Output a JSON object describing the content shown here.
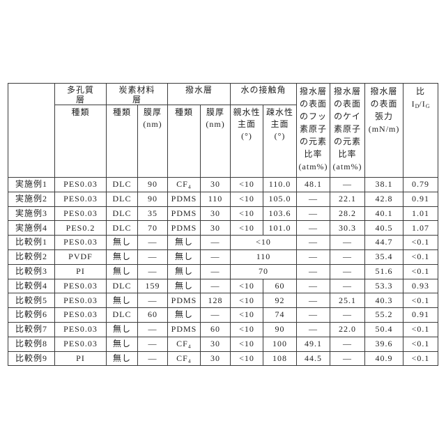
{
  "header": {
    "groups": {
      "porous": "多孔質\n層",
      "carbon": "炭素材料\n層",
      "repellent": "撥水層",
      "contact": "水の接触角"
    },
    "sub": {
      "porous_type": "種類",
      "carbon_type": "種類",
      "carbon_thickness": "膜厚\n(nm)",
      "repellent_type": "種類",
      "repellent_thickness": "膜厚\n(nm)",
      "hydrophilic": "親水性\n主面\n(°)",
      "hydrophobic": "疎水性\n主面\n(°)"
    },
    "fluorine": "撥水層\nの表面\nのフッ\n素原子\nの元素\n比率\n(atm%)",
    "silicon": "撥水層\nの表面\nのケイ\n素原子\nの元素\n比率\n(atm%)",
    "tension": "撥水層\nの表面\n張力\n(mN/m)",
    "ratio": {
      "title": "比",
      "num": "I",
      "num_sub": "D",
      "slash": "/",
      "den": "I",
      "den_sub": "G"
    }
  },
  "rows": [
    {
      "label": "実施例1",
      "porous": "PES0.03",
      "carbon_type": "DLC",
      "carbon_thickness": "90",
      "repellent_type": "CF₄",
      "repellent_thickness": "30",
      "contact_hydrophilic": "<10",
      "contact_hydrophobic": "110.0",
      "fluorine": "48.1",
      "silicon": "―",
      "tension": "38.1",
      "ratio": "0.79"
    },
    {
      "label": "実施例2",
      "porous": "PES0.03",
      "carbon_type": "DLC",
      "carbon_thickness": "90",
      "repellent_type": "PDMS",
      "repellent_thickness": "110",
      "contact_hydrophilic": "<10",
      "contact_hydrophobic": "105.0",
      "fluorine": "―",
      "silicon": "22.1",
      "tension": "42.8",
      "ratio": "0.91"
    },
    {
      "label": "実施例3",
      "porous": "PES0.03",
      "carbon_type": "DLC",
      "carbon_thickness": "35",
      "repellent_type": "PDMS",
      "repellent_thickness": "30",
      "contact_hydrophilic": "<10",
      "contact_hydrophobic": "103.6",
      "fluorine": "―",
      "silicon": "28.2",
      "tension": "40.1",
      "ratio": "1.01"
    },
    {
      "label": "実施例4",
      "porous": "PES0.2",
      "carbon_type": "DLC",
      "carbon_thickness": "70",
      "repellent_type": "PDMS",
      "repellent_thickness": "30",
      "contact_hydrophilic": "<10",
      "contact_hydrophobic": "101.0",
      "fluorine": "―",
      "silicon": "30.3",
      "tension": "40.5",
      "ratio": "1.07"
    },
    {
      "label": "比較例1",
      "porous": "PES0.03",
      "carbon_type": "無し",
      "carbon_thickness": "―",
      "repellent_type": "無し",
      "repellent_thickness": "―",
      "contact_merged": "<10",
      "fluorine": "―",
      "silicon": "―",
      "tension": "44.7",
      "ratio": "<0.1"
    },
    {
      "label": "比較例2",
      "porous": "PVDF",
      "carbon_type": "無し",
      "carbon_thickness": "―",
      "repellent_type": "無し",
      "repellent_thickness": "―",
      "contact_merged": "110",
      "fluorine": "―",
      "silicon": "―",
      "tension": "35.4",
      "ratio": "<0.1"
    },
    {
      "label": "比較例3",
      "porous": "PI",
      "carbon_type": "無し",
      "carbon_thickness": "―",
      "repellent_type": "無し",
      "repellent_thickness": "―",
      "contact_merged": "70",
      "fluorine": "―",
      "silicon": "―",
      "tension": "51.6",
      "ratio": "<0.1"
    },
    {
      "label": "比較例4",
      "porous": "PES0.03",
      "carbon_type": "DLC",
      "carbon_thickness": "159",
      "repellent_type": "無し",
      "repellent_thickness": "―",
      "contact_hydrophilic": "<10",
      "contact_hydrophobic": "60",
      "fluorine": "―",
      "silicon": "―",
      "tension": "53.3",
      "ratio": "0.93"
    },
    {
      "label": "比較例5",
      "porous": "PES0.03",
      "carbon_type": "無し",
      "carbon_thickness": "―",
      "repellent_type": "PDMS",
      "repellent_thickness": "128",
      "contact_hydrophilic": "<10",
      "contact_hydrophobic": "92",
      "fluorine": "―",
      "silicon": "25.1",
      "tension": "40.3",
      "ratio": "<0.1"
    },
    {
      "label": "比較例6",
      "porous": "PES0.03",
      "carbon_type": "DLC",
      "carbon_thickness": "60",
      "repellent_type": "無し",
      "repellent_thickness": "―",
      "contact_hydrophilic": "<10",
      "contact_hydrophobic": "74",
      "fluorine": "―",
      "silicon": "―",
      "tension": "55.2",
      "ratio": "0.91"
    },
    {
      "label": "比較例7",
      "porous": "PES0.03",
      "carbon_type": "無し",
      "carbon_thickness": "―",
      "repellent_type": "PDMS",
      "repellent_thickness": "60",
      "contact_hydrophilic": "<10",
      "contact_hydrophobic": "90",
      "fluorine": "―",
      "silicon": "22.0",
      "tension": "50.4",
      "ratio": "<0.1"
    },
    {
      "label": "比較例8",
      "porous": "PES0.03",
      "carbon_type": "無し",
      "carbon_thickness": "―",
      "repellent_type": "CF₄",
      "repellent_thickness": "30",
      "contact_hydrophilic": "<10",
      "contact_hydrophobic": "100",
      "fluorine": "49.1",
      "silicon": "―",
      "tension": "39.6",
      "ratio": "<0.1"
    },
    {
      "label": "比較例9",
      "porous": "PI",
      "carbon_type": "無し",
      "carbon_thickness": "―",
      "repellent_type": "CF₄",
      "repellent_thickness": "30",
      "contact_hydrophilic": "<10",
      "contact_hydrophobic": "108",
      "fluorine": "44.5",
      "silicon": "―",
      "tension": "40.9",
      "ratio": "<0.1"
    }
  ]
}
